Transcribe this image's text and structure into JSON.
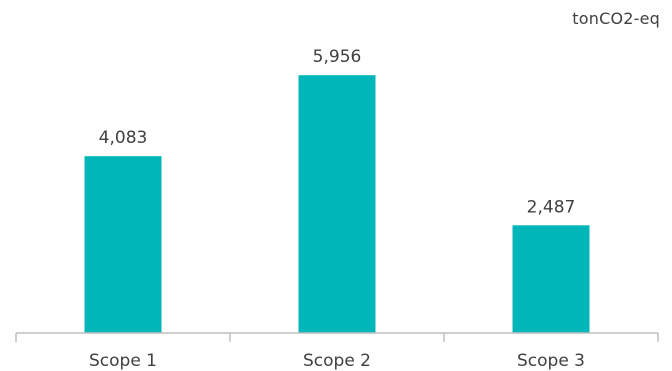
{
  "chart_data": {
    "type": "bar",
    "unit_label": "tonCO2-eq",
    "categories": [
      "Scope 1",
      "Scope 2",
      "Scope 3"
    ],
    "values": [
      4083,
      5956,
      2487
    ],
    "value_labels": [
      "4,083",
      "5,956",
      "2,487"
    ],
    "ylim": [
      0,
      6445
    ],
    "grid": false,
    "colors": {
      "bar": "#00B6B8",
      "axis": "#BFBFBF",
      "text": "#404040"
    }
  }
}
